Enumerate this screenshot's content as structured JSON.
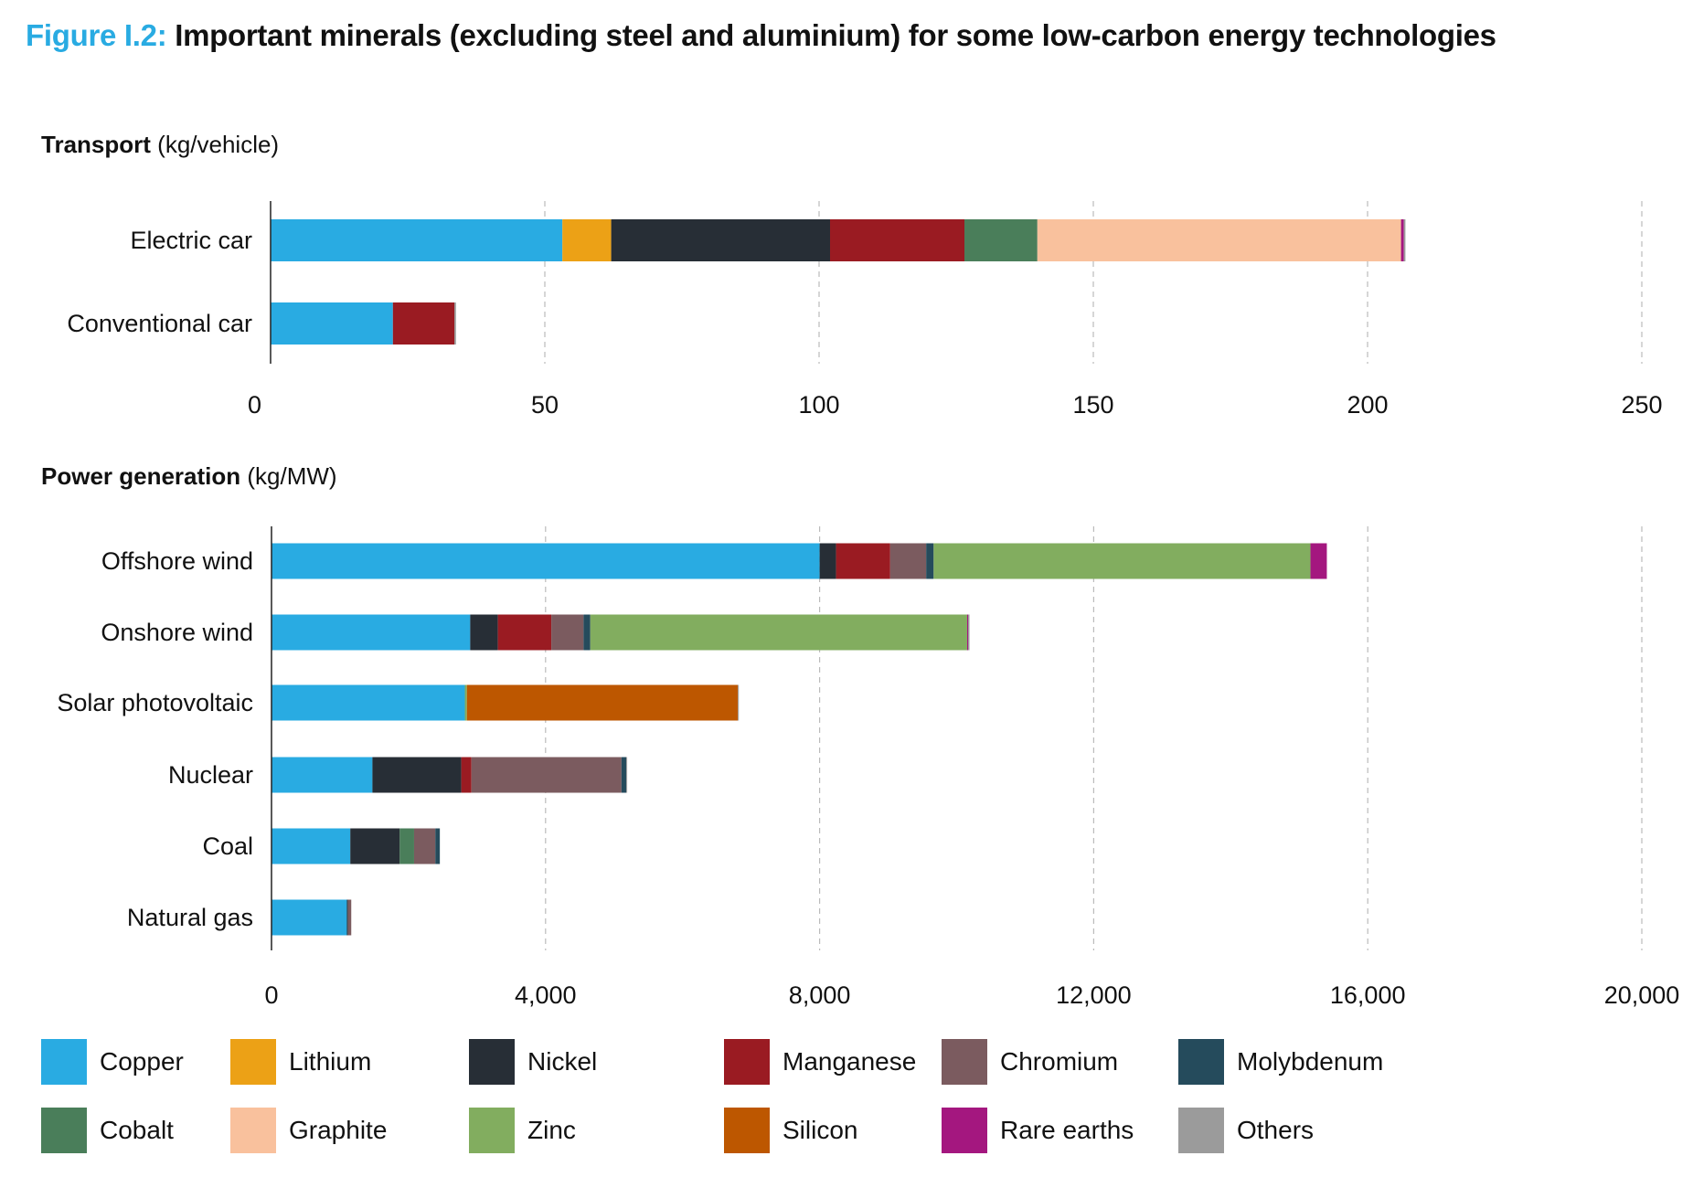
{
  "title": {
    "prefix": "Figure I.2:",
    "text": "Important minerals (excluding steel and aluminium) for some low-carbon energy technologies"
  },
  "colors": {
    "Copper": "#29abe2",
    "Lithium": "#eca116",
    "Nickel": "#272e36",
    "Manganese": "#9a1b22",
    "Chromium": "#7b5b5f",
    "Molybdenum": "#254b5c",
    "Cobalt": "#4a7e5a",
    "Graphite": "#f9c19d",
    "Zinc": "#82ad5f",
    "Silicon": "#bd5700",
    "Rare earths": "#a4177f",
    "Others": "#9b9b9b",
    "title_accent": "#29abe2"
  },
  "legend": [
    "Copper",
    "Lithium",
    "Nickel",
    "Manganese",
    "Chromium",
    "Molybdenum",
    "Cobalt",
    "Graphite",
    "Zinc",
    "Silicon",
    "Rare earths",
    "Others"
  ],
  "chart_data": [
    {
      "type": "bar",
      "orientation": "horizontal",
      "stacked": true,
      "title": "Transport",
      "unit": "(kg/vehicle)",
      "categories": [
        "Electric car",
        "Conventional car"
      ],
      "xlim": [
        0,
        250
      ],
      "xticks": [
        0,
        50,
        100,
        150,
        200,
        250
      ],
      "xtick_labels": [
        "0",
        "50",
        "100",
        "150",
        "200",
        "250"
      ],
      "grid": "vertical dashed",
      "series": [
        {
          "name": "Copper",
          "values": [
            53.2,
            22.3
          ]
        },
        {
          "name": "Lithium",
          "values": [
            8.9,
            0
          ]
        },
        {
          "name": "Nickel",
          "values": [
            39.9,
            0
          ]
        },
        {
          "name": "Manganese",
          "values": [
            24.5,
            11.2
          ]
        },
        {
          "name": "Cobalt",
          "values": [
            13.3,
            0
          ]
        },
        {
          "name": "Graphite",
          "values": [
            66.3,
            0
          ]
        },
        {
          "name": "Rare earths",
          "values": [
            0.5,
            0
          ]
        },
        {
          "name": "Others",
          "values": [
            0.3,
            0.3
          ]
        }
      ]
    },
    {
      "type": "bar",
      "orientation": "horizontal",
      "stacked": true,
      "title": "Power generation",
      "unit": "(kg/MW)",
      "categories": [
        "Offshore wind",
        "Onshore wind",
        "Solar photovoltaic",
        "Nuclear",
        "Coal",
        "Natural gas"
      ],
      "xlim": [
        0,
        20000
      ],
      "xticks": [
        0,
        4000,
        8000,
        12000,
        16000,
        20000
      ],
      "xtick_labels": [
        "0",
        "4,000",
        "8,000",
        "12,000",
        "16,000",
        "20,000"
      ],
      "grid": "vertical dashed",
      "series": [
        {
          "name": "Copper",
          "values": [
            8000,
            2900,
            2822,
            1473,
            1150,
            1100
          ]
        },
        {
          "name": "Nickel",
          "values": [
            240,
            404,
            0,
            1297,
            721,
            16
          ]
        },
        {
          "name": "Manganese",
          "values": [
            790,
            780,
            0,
            148,
            0,
            0
          ]
        },
        {
          "name": "Cobalt",
          "values": [
            0,
            0,
            0,
            0,
            210,
            0
          ]
        },
        {
          "name": "Chromium",
          "values": [
            525,
            470,
            0,
            2190,
            310,
            48
          ]
        },
        {
          "name": "Molybdenum",
          "values": [
            109,
            99,
            0,
            70,
            66,
            0
          ]
        },
        {
          "name": "Zinc",
          "values": [
            5500,
            5500,
            30,
            0,
            0,
            0
          ]
        },
        {
          "name": "Silicon",
          "values": [
            0,
            0,
            3955,
            0,
            0,
            0
          ]
        },
        {
          "name": "Rare earths",
          "values": [
            239,
            14,
            0,
            0,
            0,
            0
          ]
        },
        {
          "name": "Others",
          "values": [
            0,
            20,
            2,
            5,
            0,
            0
          ]
        }
      ]
    }
  ]
}
